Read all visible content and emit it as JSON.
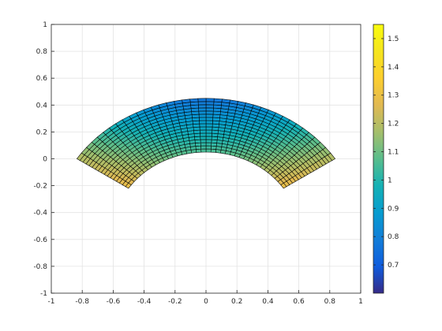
{
  "chart_data": {
    "type": "heatmap",
    "title": "",
    "xlabel": "",
    "ylabel": "",
    "xlim": [
      -1,
      1
    ],
    "ylim": [
      -1,
      1
    ],
    "grid": true,
    "x_ticks": [
      "-1",
      "-0.8",
      "-0.6",
      "-0.4",
      "-0.2",
      "0",
      "0.2",
      "0.4",
      "0.6",
      "0.8",
      "1"
    ],
    "y_ticks": [
      "1",
      "0.8",
      "0.6",
      "0.4",
      "0.2",
      "0",
      "-0.2",
      "-0.4",
      "-0.6",
      "-0.8",
      "-1"
    ],
    "colorbar": {
      "limits": [
        0.6,
        1.55
      ],
      "ticks": [
        "1.5",
        "1.4",
        "1.3",
        "1.2",
        "1.1",
        "1",
        "0.9",
        "0.8",
        "0.7"
      ],
      "colormap": "parula"
    },
    "mesh": {
      "shape": "annular-sector",
      "center": [
        0,
        -0.55
      ],
      "outer_radius": 1.0,
      "inner_radius": 0.6,
      "angle_range_deg": [
        33.4,
        146.6
      ],
      "angular_cells": 38,
      "radial_cells": 17,
      "color_value": "increasing downward, from about 0.6 at top to about 1.55 at bottom corners",
      "edge_color": "#000000"
    }
  }
}
